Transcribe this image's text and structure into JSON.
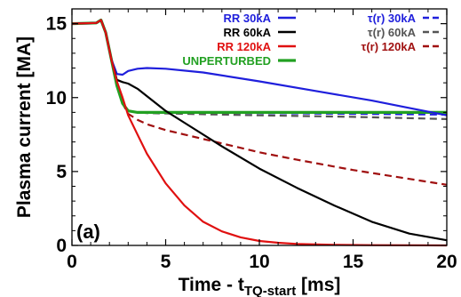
{
  "chart_data": {
    "type": "line",
    "panel_label": "(a)",
    "xlabel": "Time - t",
    "xlabel_sub": "TQ-start",
    "xlabel_unit": " [ms]",
    "ylabel": "Plasma current [MA]",
    "xlim": [
      0,
      20
    ],
    "ylim": [
      0,
      16
    ],
    "xticks": [
      0,
      5,
      10,
      15,
      20
    ],
    "yticks": [
      0,
      5,
      10,
      15
    ],
    "grid": false,
    "legend_position": "top-right",
    "series": [
      {
        "name": "RR  30kA",
        "color": "#1f1fdc",
        "dash": "solid",
        "x": [
          0,
          1.3,
          1.55,
          1.8,
          2.1,
          2.4,
          2.7,
          3.0,
          3.5,
          4.0,
          5.0,
          7.0,
          10.0,
          13.0,
          16.0,
          18.0,
          20.0
        ],
        "y": [
          15.0,
          15.05,
          15.25,
          14.4,
          12.6,
          11.6,
          11.55,
          11.8,
          11.95,
          12.0,
          11.95,
          11.7,
          11.1,
          10.45,
          9.8,
          9.3,
          8.8
        ]
      },
      {
        "name": "RR  60kA",
        "color": "#000000",
        "dash": "solid",
        "x": [
          0,
          1.3,
          1.55,
          1.8,
          2.1,
          2.4,
          2.7,
          3.0,
          3.5,
          4.0,
          5.0,
          6.0,
          8.0,
          10.0,
          12.0,
          14.0,
          16.0,
          18.0,
          20.0
        ],
        "y": [
          15.0,
          15.05,
          15.25,
          14.4,
          12.6,
          11.2,
          11.05,
          10.95,
          10.6,
          10.1,
          9.1,
          8.3,
          6.7,
          5.2,
          3.9,
          2.7,
          1.6,
          0.8,
          0.35
        ]
      },
      {
        "name": "RR 120kA",
        "color": "#e01010",
        "dash": "solid",
        "x": [
          0,
          1.3,
          1.55,
          1.8,
          2.1,
          2.4,
          2.7,
          3.0,
          3.5,
          4.0,
          5.0,
          6.0,
          7.0,
          8.0,
          9.0,
          10.0,
          11.0,
          12.0,
          14.0,
          16.0,
          18.0,
          20.0
        ],
        "y": [
          15.0,
          15.05,
          15.25,
          14.4,
          12.6,
          11.1,
          10.0,
          8.8,
          7.5,
          6.2,
          4.2,
          2.7,
          1.6,
          0.95,
          0.55,
          0.3,
          0.18,
          0.1,
          0.04,
          0.02,
          0.01,
          0.0
        ]
      },
      {
        "name": "UNPERTURBED",
        "color": "#22a022",
        "dash": "solid",
        "width": 3.2,
        "x": [
          0,
          1.3,
          1.55,
          1.8,
          2.1,
          2.4,
          2.7,
          3.0,
          3.5,
          4.0,
          6.0,
          10.0,
          15.0,
          20.0
        ],
        "y": [
          15.0,
          15.05,
          15.25,
          14.4,
          12.6,
          10.8,
          9.6,
          9.1,
          9.0,
          9.0,
          9.0,
          9.0,
          9.0,
          9.0
        ]
      },
      {
        "name": "τ(r)  30kA",
        "color": "#1f1fdc",
        "dash": "dashed",
        "x": [
          0,
          1.3,
          1.55,
          1.8,
          2.1,
          2.4,
          2.7,
          3.0,
          3.5,
          4.0,
          6.0,
          10.0,
          15.0,
          20.0
        ],
        "y": [
          15.0,
          15.05,
          15.25,
          14.4,
          12.6,
          10.8,
          9.6,
          9.1,
          9.0,
          9.0,
          9.0,
          8.95,
          8.9,
          8.85
        ]
      },
      {
        "name": "τ(r)  60kA",
        "color": "#555555",
        "dash": "dashed",
        "x": [
          0,
          1.3,
          1.55,
          1.8,
          2.1,
          2.4,
          2.7,
          3.0,
          3.5,
          4.0,
          6.0,
          10.0,
          15.0,
          20.0
        ],
        "y": [
          15.0,
          15.05,
          15.25,
          14.4,
          12.6,
          10.8,
          9.6,
          9.1,
          9.0,
          8.95,
          8.9,
          8.8,
          8.7,
          8.55
        ]
      },
      {
        "name": "τ(r) 120kA",
        "color": "#a01010",
        "dash": "dashed",
        "x": [
          0,
          1.3,
          1.55,
          1.8,
          2.1,
          2.4,
          2.7,
          3.0,
          3.5,
          4.0,
          5.0,
          6.0,
          8.0,
          10.0,
          12.0,
          15.0,
          18.0,
          20.0
        ],
        "y": [
          15.0,
          15.05,
          15.25,
          14.4,
          12.6,
          10.8,
          9.6,
          8.9,
          8.5,
          8.2,
          7.8,
          7.5,
          6.9,
          6.3,
          5.8,
          5.1,
          4.5,
          4.1
        ]
      }
    ]
  }
}
